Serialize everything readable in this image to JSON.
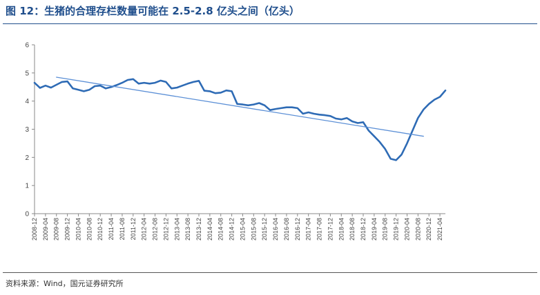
{
  "title": "图 12：生猪的合理存栏数量可能在 2.5-2.8 亿头之间（亿头）",
  "source": "资料来源：Wind，国元证券研究所",
  "chart_data": {
    "type": "line",
    "title": "图 12：生猪的合理存栏数量可能在 2.5-2.8 亿头之间（亿头）",
    "xlabel": "",
    "ylabel": "",
    "ylim": [
      0,
      6
    ],
    "yticks": [
      "0",
      "1",
      "2",
      "3",
      "4",
      "5",
      "6"
    ],
    "grid": false,
    "legend": "none",
    "categories": [
      "2008-12",
      "2009-04",
      "2009-08",
      "2009-12",
      "2010-04",
      "2010-08",
      "2010-12",
      "2011-04",
      "2011-08",
      "2011-12",
      "2012-04",
      "2012-08",
      "2012-12",
      "2013-04",
      "2013-08",
      "2013-12",
      "2014-04",
      "2014-08",
      "2014-12",
      "2015-04",
      "2015-08",
      "2015-12",
      "2016-04",
      "2016-08",
      "2016-12",
      "2017-04",
      "2017-08",
      "2017-12",
      "2018-04",
      "2018-08",
      "2018-12",
      "2019-04",
      "2019-08",
      "2019-12",
      "2020-04",
      "2020-08",
      "2020-12",
      "2021-04"
    ],
    "series": [
      {
        "color": "#2e6bb5",
        "points": [
          [
            "2008-12",
            4.65
          ],
          [
            "2009-02",
            4.47
          ],
          [
            "2009-04",
            4.55
          ],
          [
            "2009-06",
            4.48
          ],
          [
            "2009-08",
            4.58
          ],
          [
            "2009-10",
            4.68
          ],
          [
            "2009-12",
            4.7
          ],
          [
            "2010-02",
            4.45
          ],
          [
            "2010-04",
            4.4
          ],
          [
            "2010-06",
            4.35
          ],
          [
            "2010-08",
            4.4
          ],
          [
            "2010-10",
            4.53
          ],
          [
            "2010-12",
            4.55
          ],
          [
            "2011-02",
            4.45
          ],
          [
            "2011-04",
            4.5
          ],
          [
            "2011-06",
            4.57
          ],
          [
            "2011-08",
            4.65
          ],
          [
            "2011-10",
            4.75
          ],
          [
            "2011-12",
            4.78
          ],
          [
            "2012-02",
            4.62
          ],
          [
            "2012-04",
            4.65
          ],
          [
            "2012-06",
            4.62
          ],
          [
            "2012-08",
            4.65
          ],
          [
            "2012-10",
            4.73
          ],
          [
            "2012-12",
            4.68
          ],
          [
            "2013-02",
            4.45
          ],
          [
            "2013-04",
            4.48
          ],
          [
            "2013-06",
            4.55
          ],
          [
            "2013-08",
            4.62
          ],
          [
            "2013-10",
            4.68
          ],
          [
            "2013-12",
            4.72
          ],
          [
            "2014-02",
            4.37
          ],
          [
            "2014-04",
            4.35
          ],
          [
            "2014-06",
            4.28
          ],
          [
            "2014-08",
            4.3
          ],
          [
            "2014-10",
            4.38
          ],
          [
            "2014-12",
            4.35
          ],
          [
            "2015-02",
            3.9
          ],
          [
            "2015-04",
            3.88
          ],
          [
            "2015-06",
            3.85
          ],
          [
            "2015-08",
            3.88
          ],
          [
            "2015-10",
            3.93
          ],
          [
            "2015-12",
            3.85
          ],
          [
            "2016-02",
            3.68
          ],
          [
            "2016-04",
            3.72
          ],
          [
            "2016-06",
            3.75
          ],
          [
            "2016-08",
            3.78
          ],
          [
            "2016-10",
            3.78
          ],
          [
            "2016-12",
            3.75
          ],
          [
            "2017-02",
            3.55
          ],
          [
            "2017-04",
            3.6
          ],
          [
            "2017-06",
            3.55
          ],
          [
            "2017-08",
            3.52
          ],
          [
            "2017-10",
            3.5
          ],
          [
            "2017-12",
            3.47
          ],
          [
            "2018-02",
            3.38
          ],
          [
            "2018-04",
            3.35
          ],
          [
            "2018-06",
            3.4
          ],
          [
            "2018-08",
            3.28
          ],
          [
            "2018-10",
            3.22
          ],
          [
            "2018-12",
            3.25
          ],
          [
            "2019-02",
            2.95
          ],
          [
            "2019-04",
            2.75
          ],
          [
            "2019-06",
            2.55
          ],
          [
            "2019-08",
            2.3
          ],
          [
            "2019-10",
            1.95
          ],
          [
            "2019-12",
            1.9
          ],
          [
            "2020-02",
            2.1
          ],
          [
            "2020-04",
            2.5
          ],
          [
            "2020-06",
            2.95
          ],
          [
            "2020-08",
            3.4
          ],
          [
            "2020-10",
            3.7
          ],
          [
            "2020-12",
            3.9
          ],
          [
            "2021-02",
            4.05
          ],
          [
            "2021-04",
            4.15
          ],
          [
            "2021-06",
            4.38
          ]
        ]
      },
      {
        "type": "trendline",
        "color": "#5b8fd6",
        "points": [
          [
            "2009-08",
            4.85
          ],
          [
            "2020-10",
            2.75
          ]
        ]
      }
    ]
  }
}
